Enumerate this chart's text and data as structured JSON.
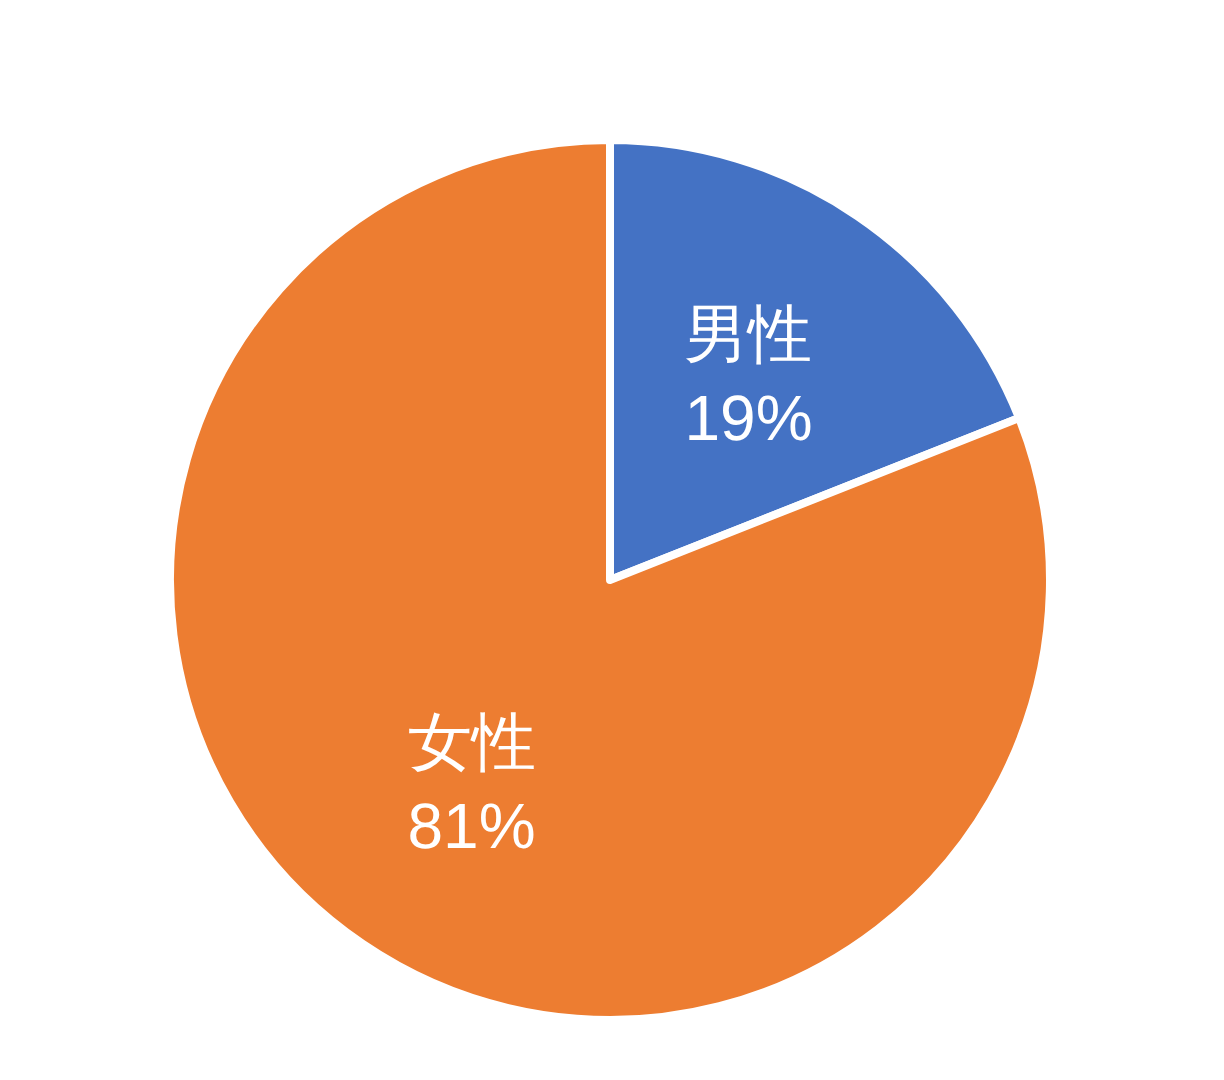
{
  "chart_data": {
    "type": "pie",
    "categories": [
      "男性",
      "女性"
    ],
    "values": [
      19,
      81
    ],
    "colors": [
      "#4472c4",
      "#ed7d31"
    ],
    "value_labels": [
      "19%",
      "81%"
    ]
  }
}
